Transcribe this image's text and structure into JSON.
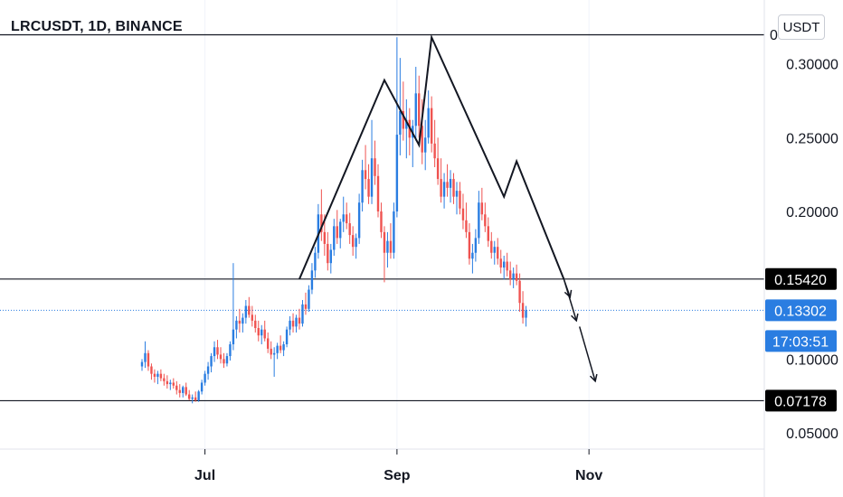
{
  "header": {
    "symbol": "LRCUSDT, 1D, BINANCE",
    "currency_button": "USDT"
  },
  "colors": {
    "up": "#2a7de1",
    "down": "#ef5350",
    "price_line": "#2a7de1",
    "level_label_bg": "#000000",
    "current_label_bg": "#2a7de1"
  },
  "chart_data": {
    "type": "candlestick",
    "symbol": "LRCUSDT",
    "interval": "1D",
    "exchange": "BINANCE",
    "ylim": [
      0.035,
      0.33
    ],
    "y_ticks": [
      "0.30000",
      "0.25000",
      "0.20000",
      "0.10000",
      "0.05000"
    ],
    "y_tick_values": [
      0.3,
      0.25,
      0.2,
      0.1,
      0.05
    ],
    "top_tick_partial": "0",
    "top_tick_value": 0.32,
    "x_ticks": [
      "Jul",
      "Sep",
      "Nov"
    ],
    "x_tick_index": [
      20,
      81,
      142
    ],
    "horizontal_levels": [
      {
        "value": 0.3197,
        "label": ""
      },
      {
        "value": 0.1542,
        "label": "0.15420"
      },
      {
        "value": 0.07178,
        "label": "0.07178"
      }
    ],
    "current_price": {
      "value": 0.13302,
      "label": "0.13302",
      "countdown": "17:03:51"
    },
    "pattern_line": [
      [
        50,
        0.1542
      ],
      [
        77,
        0.289
      ],
      [
        88,
        0.245
      ],
      [
        92,
        0.318
      ],
      [
        115,
        0.21
      ],
      [
        119,
        0.234
      ],
      [
        134,
        0.1542
      ]
    ],
    "projection_arrows": [
      [
        [
          136,
          0.142
        ],
        [
          134,
          0.1542
        ],
        [
          138,
          0.126
        ]
      ],
      [
        [
          139,
          0.122
        ],
        [
          144,
          0.085
        ]
      ]
    ],
    "candles": [
      [
        0.095,
        0.1,
        0.092,
        0.098
      ],
      [
        0.098,
        0.112,
        0.094,
        0.104
      ],
      [
        0.104,
        0.106,
        0.092,
        0.095
      ],
      [
        0.095,
        0.097,
        0.086,
        0.09
      ],
      [
        0.09,
        0.093,
        0.084,
        0.088
      ],
      [
        0.088,
        0.092,
        0.083,
        0.09
      ],
      [
        0.09,
        0.093,
        0.085,
        0.087
      ],
      [
        0.087,
        0.09,
        0.082,
        0.085
      ],
      [
        0.085,
        0.089,
        0.08,
        0.083
      ],
      [
        0.083,
        0.086,
        0.079,
        0.084
      ],
      [
        0.084,
        0.087,
        0.08,
        0.082
      ],
      [
        0.082,
        0.085,
        0.076,
        0.079
      ],
      [
        0.079,
        0.083,
        0.074,
        0.077
      ],
      [
        0.077,
        0.082,
        0.074,
        0.081
      ],
      [
        0.081,
        0.084,
        0.075,
        0.076
      ],
      [
        0.076,
        0.079,
        0.072,
        0.073
      ],
      [
        0.073,
        0.076,
        0.07,
        0.074
      ],
      [
        0.074,
        0.078,
        0.071,
        0.072
      ],
      [
        0.072,
        0.079,
        0.071,
        0.078
      ],
      [
        0.078,
        0.086,
        0.076,
        0.084
      ],
      [
        0.084,
        0.092,
        0.082,
        0.09
      ],
      [
        0.09,
        0.098,
        0.086,
        0.095
      ],
      [
        0.095,
        0.104,
        0.091,
        0.102
      ],
      [
        0.102,
        0.112,
        0.098,
        0.108
      ],
      [
        0.108,
        0.113,
        0.1,
        0.103
      ],
      [
        0.103,
        0.108,
        0.097,
        0.1
      ],
      [
        0.1,
        0.104,
        0.094,
        0.097
      ],
      [
        0.097,
        0.104,
        0.095,
        0.102
      ],
      [
        0.102,
        0.112,
        0.099,
        0.11
      ],
      [
        0.11,
        0.165,
        0.106,
        0.12
      ],
      [
        0.12,
        0.129,
        0.114,
        0.126
      ],
      [
        0.126,
        0.134,
        0.118,
        0.124
      ],
      [
        0.124,
        0.131,
        0.118,
        0.128
      ],
      [
        0.128,
        0.14,
        0.124,
        0.136
      ],
      [
        0.136,
        0.142,
        0.128,
        0.13
      ],
      [
        0.13,
        0.136,
        0.122,
        0.126
      ],
      [
        0.126,
        0.13,
        0.118,
        0.121
      ],
      [
        0.121,
        0.126,
        0.112,
        0.116
      ],
      [
        0.116,
        0.123,
        0.11,
        0.12
      ],
      [
        0.12,
        0.126,
        0.112,
        0.114
      ],
      [
        0.114,
        0.118,
        0.104,
        0.107
      ],
      [
        0.107,
        0.112,
        0.1,
        0.103
      ],
      [
        0.103,
        0.108,
        0.088,
        0.104
      ],
      [
        0.104,
        0.111,
        0.1,
        0.109
      ],
      [
        0.109,
        0.116,
        0.104,
        0.106
      ],
      [
        0.106,
        0.112,
        0.102,
        0.11
      ],
      [
        0.11,
        0.122,
        0.108,
        0.12
      ],
      [
        0.12,
        0.129,
        0.116,
        0.126
      ],
      [
        0.126,
        0.131,
        0.118,
        0.122
      ],
      [
        0.122,
        0.13,
        0.118,
        0.128
      ],
      [
        0.128,
        0.134,
        0.12,
        0.124
      ],
      [
        0.124,
        0.14,
        0.122,
        0.137
      ],
      [
        0.137,
        0.145,
        0.13,
        0.134
      ],
      [
        0.134,
        0.15,
        0.132,
        0.147
      ],
      [
        0.147,
        0.165,
        0.144,
        0.16
      ],
      [
        0.16,
        0.176,
        0.155,
        0.172
      ],
      [
        0.172,
        0.205,
        0.168,
        0.198
      ],
      [
        0.198,
        0.215,
        0.18,
        0.186
      ],
      [
        0.186,
        0.198,
        0.17,
        0.178
      ],
      [
        0.178,
        0.186,
        0.16,
        0.165
      ],
      [
        0.165,
        0.178,
        0.158,
        0.174
      ],
      [
        0.174,
        0.195,
        0.17,
        0.19
      ],
      [
        0.19,
        0.201,
        0.178,
        0.182
      ],
      [
        0.182,
        0.195,
        0.175,
        0.193
      ],
      [
        0.193,
        0.21,
        0.186,
        0.198
      ],
      [
        0.198,
        0.206,
        0.188,
        0.192
      ],
      [
        0.192,
        0.199,
        0.178,
        0.184
      ],
      [
        0.184,
        0.19,
        0.17,
        0.176
      ],
      [
        0.176,
        0.185,
        0.168,
        0.182
      ],
      [
        0.182,
        0.212,
        0.178,
        0.206
      ],
      [
        0.206,
        0.235,
        0.2,
        0.228
      ],
      [
        0.228,
        0.245,
        0.215,
        0.222
      ],
      [
        0.222,
        0.232,
        0.205,
        0.21
      ],
      [
        0.21,
        0.262,
        0.205,
        0.236
      ],
      [
        0.236,
        0.248,
        0.218,
        0.224
      ],
      [
        0.224,
        0.232,
        0.196,
        0.2
      ],
      [
        0.2,
        0.206,
        0.182,
        0.186
      ],
      [
        0.186,
        0.19,
        0.152,
        0.172
      ],
      [
        0.172,
        0.186,
        0.162,
        0.18
      ],
      [
        0.18,
        0.192,
        0.168,
        0.172
      ],
      [
        0.172,
        0.206,
        0.168,
        0.2
      ],
      [
        0.2,
        0.318,
        0.196,
        0.252
      ],
      [
        0.252,
        0.304,
        0.238,
        0.268
      ],
      [
        0.268,
        0.288,
        0.248,
        0.256
      ],
      [
        0.256,
        0.276,
        0.236,
        0.262
      ],
      [
        0.262,
        0.27,
        0.238,
        0.25
      ],
      [
        0.25,
        0.262,
        0.23,
        0.258
      ],
      [
        0.258,
        0.298,
        0.248,
        0.28
      ],
      [
        0.28,
        0.292,
        0.25,
        0.258
      ],
      [
        0.258,
        0.276,
        0.232,
        0.24
      ],
      [
        0.24,
        0.262,
        0.228,
        0.25
      ],
      [
        0.25,
        0.282,
        0.246,
        0.27
      ],
      [
        0.27,
        0.278,
        0.24,
        0.246
      ],
      [
        0.246,
        0.262,
        0.23,
        0.236
      ],
      [
        0.236,
        0.25,
        0.218,
        0.222
      ],
      [
        0.222,
        0.236,
        0.206,
        0.21
      ],
      [
        0.21,
        0.226,
        0.202,
        0.22
      ],
      [
        0.22,
        0.232,
        0.21,
        0.216
      ],
      [
        0.216,
        0.228,
        0.206,
        0.222
      ],
      [
        0.222,
        0.226,
        0.205,
        0.21
      ],
      [
        0.21,
        0.22,
        0.198,
        0.214
      ],
      [
        0.214,
        0.22,
        0.198,
        0.202
      ],
      [
        0.202,
        0.212,
        0.188,
        0.194
      ],
      [
        0.194,
        0.206,
        0.182,
        0.186
      ],
      [
        0.186,
        0.192,
        0.164,
        0.168
      ],
      [
        0.168,
        0.178,
        0.158,
        0.172
      ],
      [
        0.172,
        0.188,
        0.166,
        0.182
      ],
      [
        0.182,
        0.214,
        0.178,
        0.206
      ],
      [
        0.206,
        0.216,
        0.194,
        0.198
      ],
      [
        0.198,
        0.206,
        0.186,
        0.19
      ],
      [
        0.19,
        0.196,
        0.176,
        0.18
      ],
      [
        0.18,
        0.186,
        0.168,
        0.172
      ],
      [
        0.172,
        0.18,
        0.164,
        0.176
      ],
      [
        0.176,
        0.182,
        0.164,
        0.168
      ],
      [
        0.168,
        0.174,
        0.158,
        0.162
      ],
      [
        0.162,
        0.17,
        0.154,
        0.166
      ],
      [
        0.166,
        0.172,
        0.156,
        0.16
      ],
      [
        0.16,
        0.166,
        0.15,
        0.154
      ],
      [
        0.154,
        0.162,
        0.148,
        0.158
      ],
      [
        0.158,
        0.164,
        0.15,
        0.153
      ],
      [
        0.153,
        0.158,
        0.132,
        0.138
      ],
      [
        0.138,
        0.146,
        0.124,
        0.128
      ],
      [
        0.128,
        0.136,
        0.122,
        0.133
      ]
    ]
  }
}
